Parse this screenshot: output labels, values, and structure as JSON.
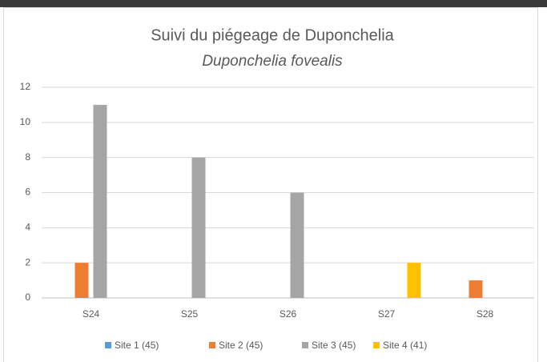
{
  "chart_data": {
    "type": "bar",
    "title": "Suivi du piégeage de Duponchelia",
    "subtitle": "Duponchelia fovealis",
    "categories": [
      "S24",
      "S25",
      "S26",
      "S27",
      "S28"
    ],
    "series": [
      {
        "name": "Site 1 (45)",
        "color": "#5b9bd5",
        "values": [
          0,
          0,
          0,
          0,
          0
        ]
      },
      {
        "name": "Site 2 (45)",
        "color": "#ed7d31",
        "values": [
          2,
          0,
          0,
          0,
          1
        ]
      },
      {
        "name": "Site 3 (45)",
        "color": "#a5a5a5",
        "values": [
          11,
          8,
          6,
          0,
          0
        ]
      },
      {
        "name": "Site 4 (41)",
        "color": "#ffc000",
        "values": [
          0,
          0,
          0,
          2,
          0
        ]
      }
    ],
    "ylim": [
      0,
      12
    ],
    "yticks": [
      0,
      2,
      4,
      6,
      8,
      10,
      12
    ],
    "grid": true,
    "legend": "bottom"
  }
}
